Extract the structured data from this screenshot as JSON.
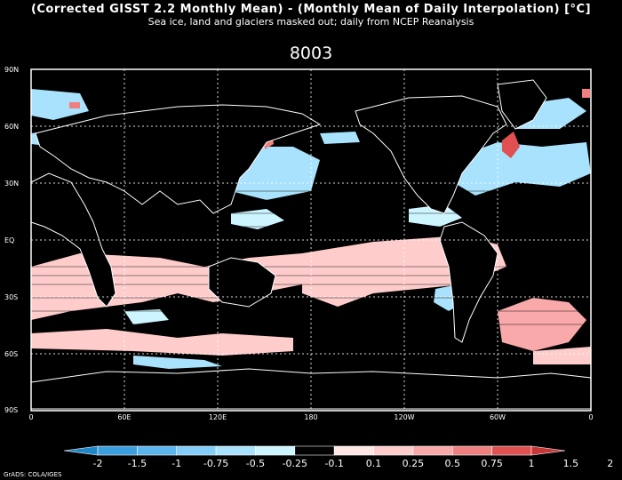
{
  "title": "(Corrected GISST 2.2 Monthly Mean) - (Monthly Mean of Daily Interpolation) [°C]",
  "subtitle": "Sea ice, land and glaciers masked out; daily from NCEP Reanalysis",
  "frame_label": "8003",
  "lat_labels": [
    "90N",
    "60N",
    "30N",
    "EQ",
    "30S",
    "60S",
    "90S"
  ],
  "lon_labels": [
    "0",
    "60E",
    "120E",
    "180",
    "120W",
    "60W",
    "0"
  ],
  "colorbar": {
    "ticks": [
      "-2",
      "-1.5",
      "-1",
      "-0.75",
      "-0.5",
      "-0.25",
      "-0.1",
      "0.1",
      "0.25",
      "0.5",
      "0.75",
      "1",
      "1.5",
      "2"
    ],
    "colors": [
      "#1f86c8",
      "#3a9fde",
      "#5cb6ee",
      "#84cdf8",
      "#a8e2fc",
      "#cdf5ff",
      "#000000",
      "#ffe6e6",
      "#ffcccc",
      "#f9a9a9",
      "#f08080",
      "#e05050",
      "#c83535"
    ]
  },
  "credit": "GrADS: COLA/IGES"
}
